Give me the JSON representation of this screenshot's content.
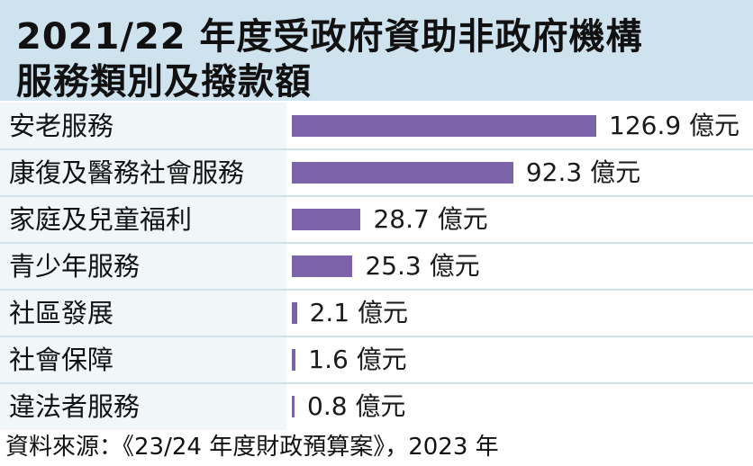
{
  "title": {
    "line1": "2021/22 年度受政府資助非政府機構",
    "line2": "服務類別及撥款額"
  },
  "unit": "億元",
  "source": "資料來源：《23/24 年度財政預算案》，2023 年",
  "colors": {
    "bar": "#7a63a8",
    "title_band": "#cfe3ef",
    "category_column": "#f1f6f9"
  },
  "chart_data": {
    "type": "bar",
    "orientation": "horizontal",
    "title": "2021/22 年度受政府資助非政府機構服務類別及撥款額",
    "categories": [
      "安老服務",
      "康復及醫務社會服務",
      "家庭及兒童福利",
      "青少年服務",
      "社區發展",
      "社會保障",
      "違法者服務"
    ],
    "values": [
      126.9,
      92.3,
      28.7,
      25.3,
      2.1,
      1.6,
      0.8
    ],
    "value_labels": [
      "126.9 億元",
      "92.3 億元",
      "28.7 億元",
      "25.3 億元",
      "2.1 億元",
      "1.6 億元",
      "0.8 億元"
    ],
    "xlim": [
      0,
      126.9
    ],
    "grid": false,
    "legend": "none"
  }
}
